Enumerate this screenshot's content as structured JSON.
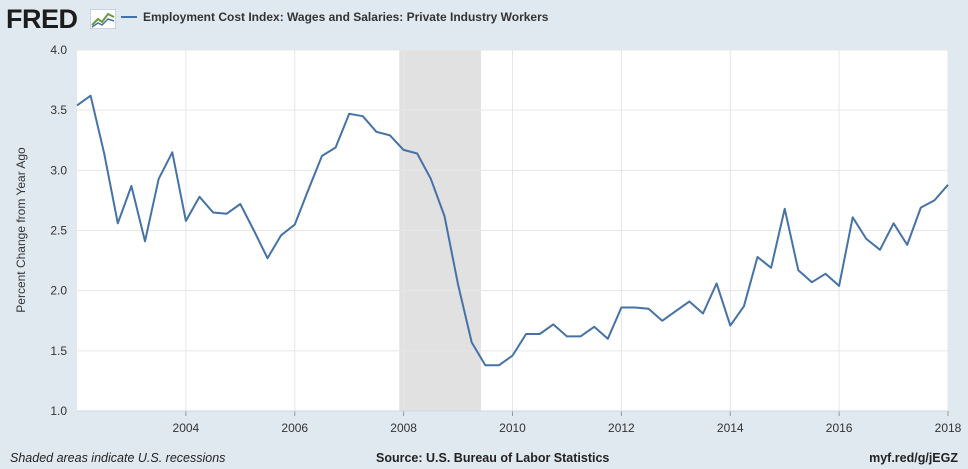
{
  "logo_text": "FRED",
  "legend_label": "Employment Cost Index: Wages and Salaries: Private Industry Workers",
  "footer": {
    "left": "Shaded areas indicate U.S. recessions",
    "source": "Source: U.S. Bureau of Labor Statistics",
    "link": "myf.red/g/jEGZ"
  },
  "colors": {
    "line": "#4572a7",
    "recession": "#e1e1e1",
    "background": "#e1e9f0"
  },
  "chart_data": {
    "type": "line",
    "ylabel": "Percent Change from Year Ago",
    "ylim": [
      1.0,
      4.0
    ],
    "yticks": [
      1.0,
      1.5,
      2.0,
      2.5,
      3.0,
      3.5,
      4.0
    ],
    "xlim": [
      2002.0,
      2018.0
    ],
    "xticks": [
      2004,
      2006,
      2008,
      2010,
      2012,
      2014,
      2016,
      2018
    ],
    "grid": true,
    "recessions": [
      [
        2007.92,
        2009.42
      ]
    ],
    "series": [
      {
        "name": "Employment Cost Index: Wages and Salaries: Private Industry Workers",
        "x": [
          2002.0,
          2002.25,
          2002.5,
          2002.75,
          2003.0,
          2003.25,
          2003.5,
          2003.75,
          2004.0,
          2004.25,
          2004.5,
          2004.75,
          2005.0,
          2005.25,
          2005.5,
          2005.75,
          2006.0,
          2006.25,
          2006.5,
          2006.75,
          2007.0,
          2007.25,
          2007.5,
          2007.75,
          2008.0,
          2008.25,
          2008.5,
          2008.75,
          2009.0,
          2009.25,
          2009.5,
          2009.75,
          2010.0,
          2010.25,
          2010.5,
          2010.75,
          2011.0,
          2011.25,
          2011.5,
          2011.75,
          2012.0,
          2012.25,
          2012.5,
          2012.75,
          2013.0,
          2013.25,
          2013.5,
          2013.75,
          2014.0,
          2014.25,
          2014.5,
          2014.75,
          2015.0,
          2015.25,
          2015.5,
          2015.75,
          2016.0,
          2016.25,
          2016.5,
          2016.75,
          2017.0,
          2017.25,
          2017.5,
          2017.75,
          2018.0
        ],
        "values": [
          3.54,
          3.62,
          3.14,
          2.56,
          2.87,
          2.41,
          2.93,
          3.15,
          2.58,
          2.78,
          2.65,
          2.64,
          2.72,
          2.5,
          2.27,
          2.46,
          2.55,
          2.84,
          3.12,
          3.19,
          3.47,
          3.45,
          3.32,
          3.29,
          3.17,
          3.14,
          2.93,
          2.62,
          2.05,
          1.57,
          1.38,
          1.38,
          1.46,
          1.64,
          1.64,
          1.72,
          1.62,
          1.62,
          1.7,
          1.6,
          1.86,
          1.86,
          1.85,
          1.75,
          1.83,
          1.91,
          1.81,
          2.06,
          1.71,
          1.87,
          2.28,
          2.19,
          2.68,
          2.17,
          2.07,
          2.14,
          2.04,
          2.61,
          2.43,
          2.34,
          2.56,
          2.38,
          2.69,
          2.75,
          2.88
        ]
      }
    ]
  }
}
